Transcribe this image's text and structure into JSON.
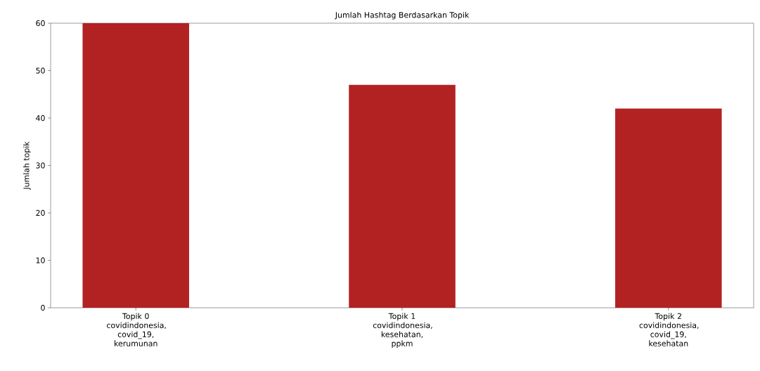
{
  "chart_data": {
    "type": "bar",
    "title": "Jumlah Hashtag Berdasarkan Topik",
    "ylabel": "Jumlah topik",
    "categories": [
      "Topik 0 covidindonesia, covid_19, kerumunan",
      "Topik 1 covidindonesia, kesehatan, ppkm",
      "Topik 2 covidindonesia, covid_19, kesehatan"
    ],
    "values": [
      60,
      47,
      42
    ],
    "color": "#b22222",
    "ylim": [
      0,
      60
    ],
    "yticks": [
      0,
      10,
      20,
      30,
      40,
      50,
      60
    ],
    "grid": false
  }
}
